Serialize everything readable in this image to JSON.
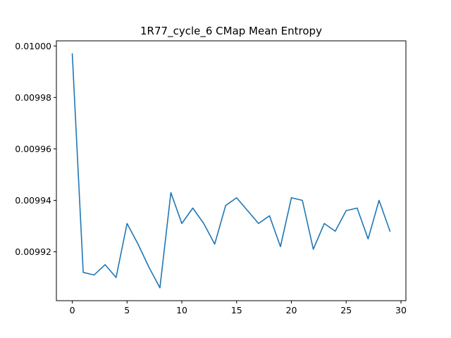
{
  "chart_data": {
    "type": "line",
    "title": "1R77_cycle_6 CMap Mean Entropy",
    "xlabel": "",
    "ylabel": "",
    "xlim": [
      -1.45,
      30.45
    ],
    "ylim": [
      0.009901,
      0.010002
    ],
    "xticks": [
      0,
      5,
      10,
      15,
      20,
      25,
      30
    ],
    "xtick_labels": [
      "0",
      "5",
      "10",
      "15",
      "20",
      "25",
      "30"
    ],
    "yticks": [
      0.00992,
      0.00994,
      0.00996,
      0.00998,
      0.01
    ],
    "ytick_labels": [
      "0.00992",
      "0.00994",
      "0.00996",
      "0.00998",
      "0.01000"
    ],
    "grid": false,
    "line_color": "#1f77b4",
    "series": [
      {
        "x": [
          0,
          1,
          2,
          3,
          4,
          5,
          6,
          7,
          8,
          9,
          10,
          11,
          12,
          13,
          14,
          15,
          16,
          17,
          18,
          19,
          20,
          21,
          22,
          23,
          24,
          25,
          26,
          27,
          28,
          29
        ],
        "values": [
          0.009997,
          0.009912,
          0.009911,
          0.009915,
          0.00991,
          0.009931,
          0.009923,
          0.009914,
          0.009906,
          0.009943,
          0.009931,
          0.009937,
          0.009931,
          0.009923,
          0.009938,
          0.009941,
          0.009936,
          0.009931,
          0.009934,
          0.009922,
          0.009941,
          0.00994,
          0.009921,
          0.009931,
          0.009928,
          0.009936,
          0.009937,
          0.009925,
          0.00994,
          0.009928
        ]
      }
    ]
  }
}
